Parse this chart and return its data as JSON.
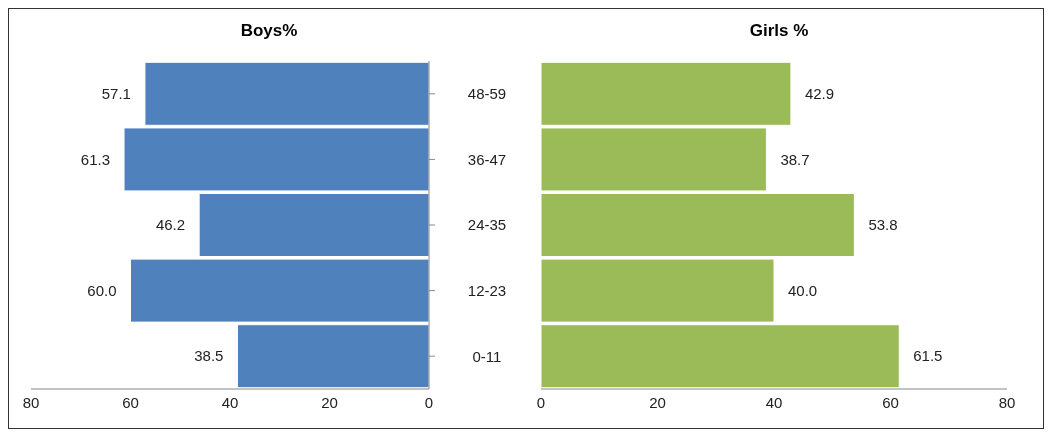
{
  "chart_data": [
    {
      "type": "bar",
      "title": "Boys%",
      "orientation": "horizontal",
      "categories": [
        "48-59",
        "36-47",
        "24-35",
        "12-23",
        "0-11"
      ],
      "values": [
        57.1,
        61.3,
        46.2,
        60.0,
        38.5
      ],
      "value_labels": [
        "57.1",
        "61.3",
        "46.2",
        "60.0",
        "38.5"
      ],
      "color": "#4f81bd",
      "xlim": [
        80,
        0
      ],
      "xticks": [
        80,
        60,
        40,
        20,
        0
      ],
      "grid": false,
      "legend": false
    },
    {
      "type": "bar",
      "title": "Girls %",
      "orientation": "horizontal",
      "categories": [
        null,
        null,
        null,
        null,
        null
      ],
      "values": [
        42.9,
        38.7,
        53.8,
        40.0,
        61.5
      ],
      "value_labels": [
        "42.9",
        "38.7",
        "53.8",
        "40.0",
        "61.5"
      ],
      "color": "#9bbb59",
      "xlim": [
        0,
        80
      ],
      "xticks": [
        0,
        20,
        40,
        60,
        80
      ],
      "grid": false,
      "legend": false,
      "tick_labels": "x"
    }
  ]
}
